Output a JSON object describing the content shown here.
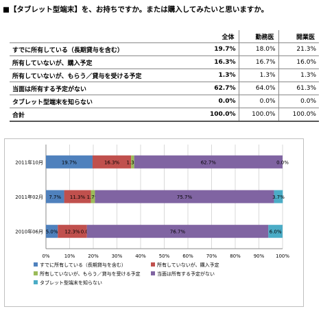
{
  "title": "■【タブレット型端末】を、お持ちですか。または購入してみたいと思いますか。",
  "table": {
    "headers": [
      "",
      "全体",
      "勤務医",
      "開業医"
    ],
    "rows": [
      {
        "label": "すでに所有している（長期貸与を含む）",
        "values": [
          "19.7%",
          "18.0%",
          "21.3%"
        ]
      },
      {
        "label": "所有していないが、購入予定",
        "values": [
          "16.3%",
          "16.7%",
          "16.0%"
        ]
      },
      {
        "label": "所有していないが、もらう／貸与を受ける予定",
        "values": [
          "1.3%",
          "1.3%",
          "1.3%"
        ]
      },
      {
        "label": "当面は所有する予定がない",
        "values": [
          "62.7%",
          "64.0%",
          "61.3%"
        ]
      },
      {
        "label": "タブレット型端末を知らない",
        "values": [
          "0.0%",
          "0.0%",
          "0.0%"
        ]
      },
      {
        "label": "合計",
        "values": [
          "100.0%",
          "100.0%",
          "100.0%"
        ]
      }
    ]
  },
  "chart_data": {
    "type": "bar",
    "orientation": "horizontal",
    "stacked": true,
    "categories": [
      "2011年10月",
      "2011年02月",
      "2010年06月"
    ],
    "series": [
      {
        "name": "すでに所有している（長期貸与を含む）",
        "color": "#4f81bd",
        "values": [
          19.7,
          7.7,
          5.0
        ],
        "labels": [
          "19.7%",
          "7.7%",
          "5.0%"
        ]
      },
      {
        "name": "所有していないが、購入予定",
        "color": "#c0504d",
        "values": [
          16.3,
          11.3,
          12.3
        ],
        "labels": [
          "16.3%",
          "11.3%",
          "12.3%"
        ]
      },
      {
        "name": "所有していないが、もらう／貸与を受ける予定",
        "color": "#9bbb59",
        "values": [
          1.3,
          1.7,
          0.0
        ],
        "labels": [
          "1.3%",
          "1.7%",
          "0.0%"
        ]
      },
      {
        "name": "当面は所有する予定がない",
        "color": "#8064a2",
        "values": [
          62.7,
          75.7,
          76.7
        ],
        "labels": [
          "62.7%",
          "75.7%",
          "76.7%"
        ]
      },
      {
        "name": "タブレット型端末を知らない",
        "color": "#4bacc6",
        "values": [
          0.0,
          3.7,
          6.0
        ],
        "labels": [
          "0.0%",
          "3.7%",
          "6.0%"
        ]
      }
    ],
    "xlim": [
      0,
      100
    ],
    "xticks": [
      "0%",
      "10%",
      "20%",
      "30%",
      "40%",
      "50%",
      "60%",
      "70%",
      "80%",
      "90%",
      "100%"
    ],
    "grid": true,
    "legend_position": "bottom"
  }
}
